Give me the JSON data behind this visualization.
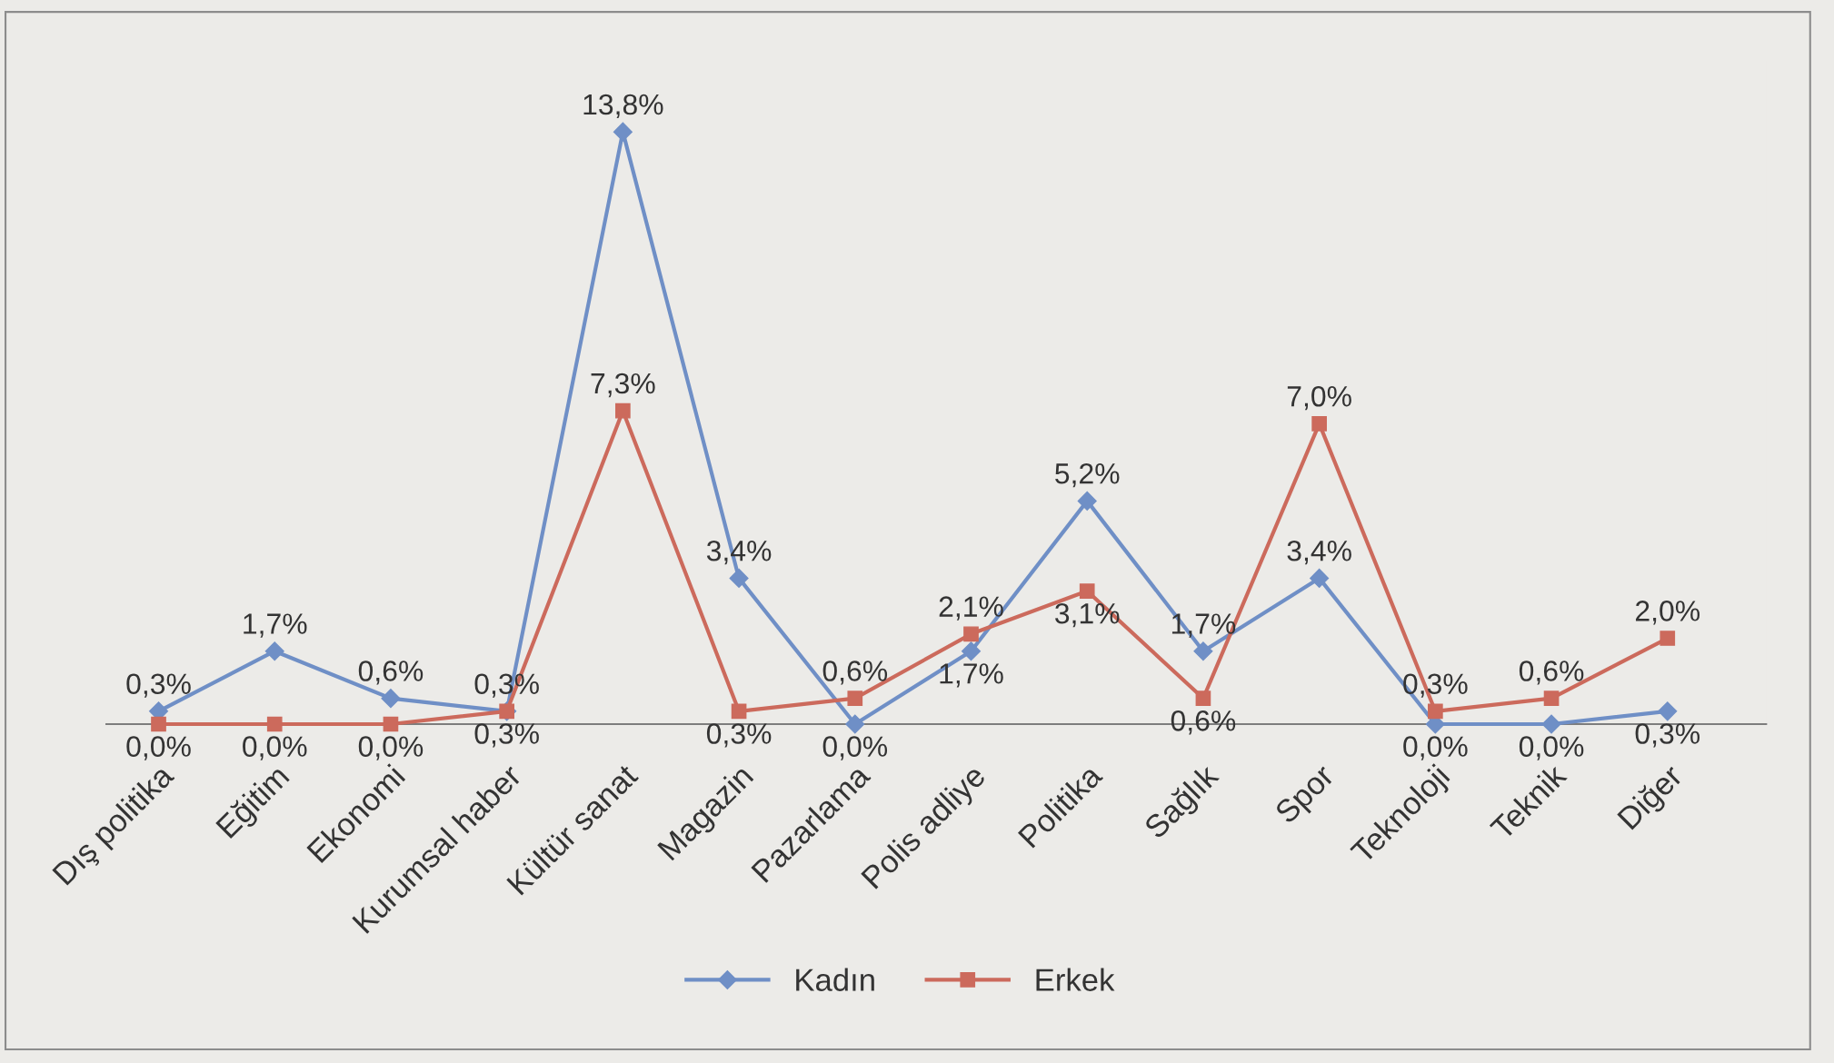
{
  "chart_data": {
    "type": "line",
    "categories": [
      "Dış politika",
      "Eğitim",
      "Ekonomi",
      "Kurumsal haber",
      "Kültür sanat",
      "Magazin",
      "Pazarlama",
      "Polis adliye",
      "Politika",
      "Sağlık",
      "Spor",
      "Teknoloji",
      "Teknik",
      "Diğer"
    ],
    "series": [
      {
        "name": "Kadın",
        "color": "#6f8fc6",
        "marker": "diamond",
        "values": [
          0.3,
          1.7,
          0.6,
          0.3,
          13.8,
          3.4,
          0.0,
          1.7,
          5.2,
          1.7,
          3.4,
          0.0,
          0.0,
          0.3
        ],
        "value_labels": [
          "0,3%",
          "1,7%",
          "0,6%",
          "0,3%",
          "13,8%",
          "3,4%",
          "0,0%",
          "1,7%",
          "5,2%",
          "1,7%",
          "3,4%",
          "0,0%",
          "0,0%",
          "0,3%"
        ]
      },
      {
        "name": "Erkek",
        "color": "#cc6a5c",
        "marker": "square",
        "values": [
          0.0,
          0.0,
          0.0,
          0.3,
          7.3,
          0.3,
          0.6,
          2.1,
          3.1,
          0.6,
          7.0,
          0.3,
          0.6,
          2.0
        ],
        "value_labels": [
          "0,0%",
          "0,0%",
          "0,0%",
          "0,3%",
          "7,3%",
          "0,3%",
          "0,6%",
          "2,1%",
          "3,1%",
          "0,6%",
          "7,0%",
          "0,3%",
          "0,6%",
          "2,0%"
        ]
      }
    ],
    "tick_labels": "x",
    "grid": false,
    "legend": "bottom",
    "line_style": "solid"
  }
}
